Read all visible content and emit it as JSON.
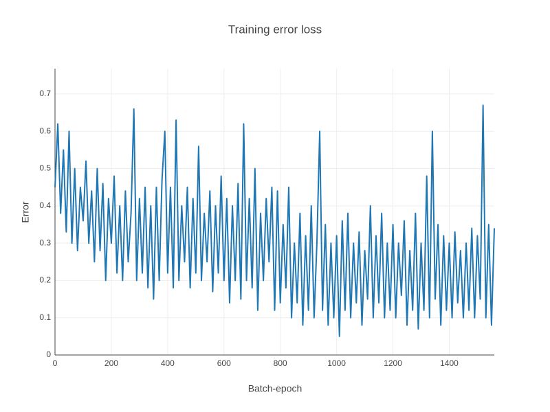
{
  "chart_data": {
    "type": "line",
    "title": "Training error loss",
    "x_label": "Batch-epoch",
    "y_label": "Error",
    "xlim": [
      0,
      1560
    ],
    "ylim": [
      0,
      0.768
    ],
    "xticks": [
      0,
      200,
      400,
      600,
      800,
      1000,
      1200,
      1400
    ],
    "yticks": [
      0,
      0.1,
      0.2,
      0.3,
      0.4,
      0.5,
      0.6,
      0.7
    ],
    "grid": true,
    "x": [
      0,
      10,
      20,
      30,
      40,
      50,
      60,
      70,
      80,
      90,
      100,
      110,
      120,
      130,
      140,
      150,
      160,
      170,
      180,
      190,
      200,
      210,
      220,
      230,
      240,
      250,
      260,
      270,
      280,
      290,
      300,
      310,
      320,
      330,
      340,
      350,
      360,
      370,
      380,
      390,
      400,
      410,
      420,
      430,
      440,
      450,
      460,
      470,
      480,
      490,
      500,
      510,
      520,
      530,
      540,
      550,
      560,
      570,
      580,
      590,
      600,
      610,
      620,
      630,
      640,
      650,
      660,
      670,
      680,
      690,
      700,
      710,
      720,
      730,
      740,
      750,
      760,
      770,
      780,
      790,
      800,
      810,
      820,
      830,
      840,
      850,
      860,
      870,
      880,
      890,
      900,
      910,
      920,
      930,
      940,
      950,
      960,
      970,
      980,
      990,
      1000,
      1010,
      1020,
      1030,
      1040,
      1050,
      1060,
      1070,
      1080,
      1090,
      1100,
      1110,
      1120,
      1130,
      1140,
      1150,
      1160,
      1170,
      1180,
      1190,
      1200,
      1210,
      1220,
      1230,
      1240,
      1250,
      1260,
      1270,
      1280,
      1290,
      1300,
      1310,
      1320,
      1330,
      1340,
      1350,
      1360,
      1370,
      1380,
      1390,
      1400,
      1410,
      1420,
      1430,
      1440,
      1450,
      1460,
      1470,
      1480,
      1490,
      1500,
      1510,
      1520,
      1530,
      1540,
      1550,
      1560
    ],
    "series": [
      {
        "name": "Error",
        "color": "#1f77b4",
        "values": [
          0.45,
          0.62,
          0.38,
          0.55,
          0.33,
          0.6,
          0.3,
          0.5,
          0.28,
          0.45,
          0.36,
          0.52,
          0.3,
          0.44,
          0.25,
          0.5,
          0.28,
          0.46,
          0.2,
          0.42,
          0.3,
          0.48,
          0.22,
          0.4,
          0.2,
          0.44,
          0.25,
          0.38,
          0.66,
          0.2,
          0.42,
          0.22,
          0.45,
          0.18,
          0.4,
          0.15,
          0.45,
          0.2,
          0.47,
          0.6,
          0.22,
          0.45,
          0.18,
          0.63,
          0.2,
          0.4,
          0.25,
          0.45,
          0.18,
          0.42,
          0.22,
          0.56,
          0.2,
          0.38,
          0.25,
          0.44,
          0.17,
          0.4,
          0.22,
          0.48,
          0.2,
          0.42,
          0.14,
          0.4,
          0.2,
          0.46,
          0.15,
          0.62,
          0.2,
          0.42,
          0.18,
          0.5,
          0.12,
          0.38,
          0.2,
          0.42,
          0.25,
          0.45,
          0.12,
          0.44,
          0.14,
          0.35,
          0.18,
          0.45,
          0.1,
          0.3,
          0.14,
          0.38,
          0.08,
          0.32,
          0.12,
          0.4,
          0.1,
          0.3,
          0.6,
          0.12,
          0.35,
          0.08,
          0.3,
          0.1,
          0.32,
          0.05,
          0.36,
          0.12,
          0.38,
          0.1,
          0.3,
          0.14,
          0.33,
          0.08,
          0.28,
          0.15,
          0.4,
          0.1,
          0.32,
          0.14,
          0.38,
          0.1,
          0.3,
          0.12,
          0.35,
          0.1,
          0.3,
          0.16,
          0.36,
          0.08,
          0.28,
          0.12,
          0.38,
          0.07,
          0.3,
          0.12,
          0.48,
          0.1,
          0.6,
          0.15,
          0.35,
          0.08,
          0.32,
          0.12,
          0.3,
          0.1,
          0.33,
          0.14,
          0.28,
          0.1,
          0.3,
          0.12,
          0.34,
          0.1,
          0.32,
          0.15,
          0.67,
          0.1,
          0.35,
          0.08,
          0.34
        ]
      }
    ]
  }
}
